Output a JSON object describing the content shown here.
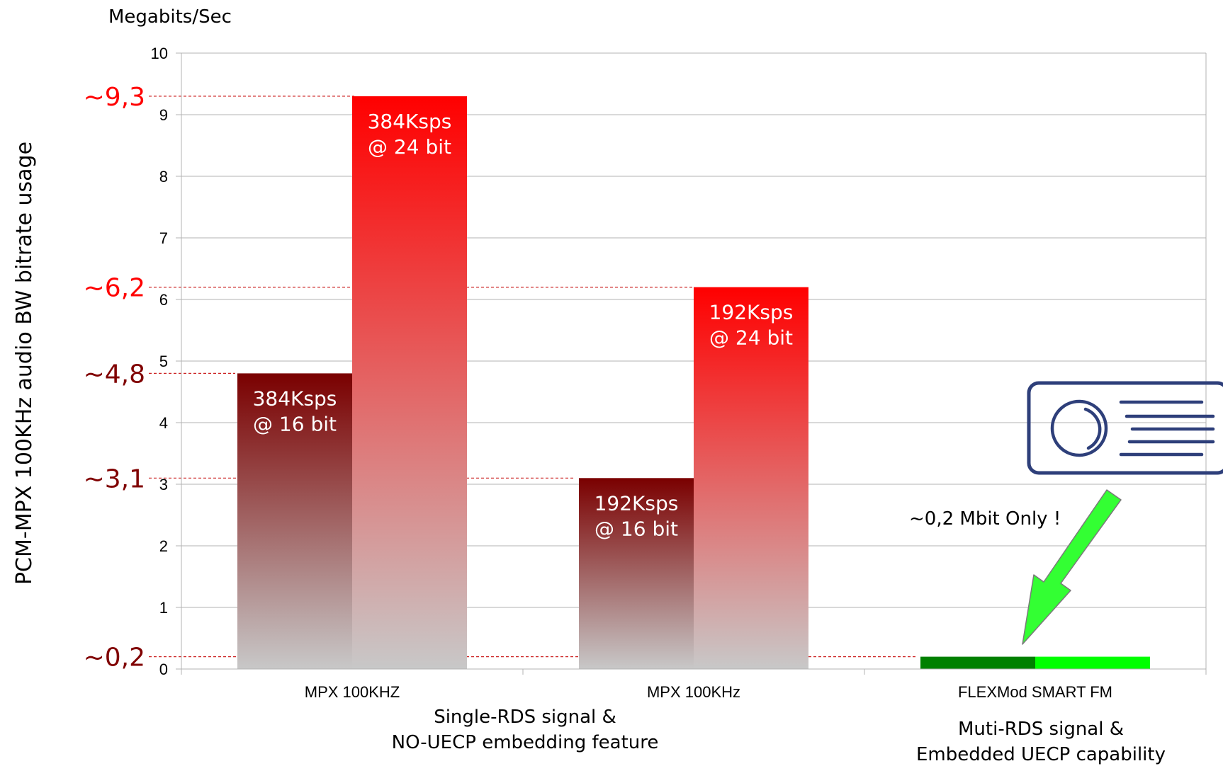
{
  "chart_data": {
    "type": "bar",
    "ylabel": "PCM-MPX 100KHz audio BW bitrate usage",
    "yunit": "Megabits/Sec",
    "ylim": [
      0,
      10
    ],
    "yticks": [
      "0",
      "1",
      "2",
      "3",
      "4",
      "5",
      "6",
      "7",
      "8",
      "9",
      "10"
    ],
    "grid": true,
    "categories": [
      "MPX 100KHZ",
      "MPX 100KHz",
      "FLEXMod SMART FM"
    ],
    "series": [
      {
        "values": [
          4.8,
          3.1,
          0.2
        ],
        "labels": [
          [
            "384Ksps",
            "@ 16 bit"
          ],
          [
            "192Ksps",
            "@ 16 bit"
          ],
          [
            "",
            ""
          ]
        ]
      },
      {
        "values": [
          9.3,
          6.2,
          0.2
        ],
        "labels": [
          [
            "384Ksps",
            "@ 24 bit"
          ],
          [
            "192Ksps",
            "@ 24 bit"
          ],
          [
            "",
            ""
          ]
        ]
      }
    ],
    "reference_lines": [
      {
        "value": 9.3,
        "label": "~9,3",
        "color": "#ff0000"
      },
      {
        "value": 6.2,
        "label": "~6,2",
        "color": "#ff0000"
      },
      {
        "value": 4.8,
        "label": "~4,8",
        "color": "#800000"
      },
      {
        "value": 3.1,
        "label": "~3,1",
        "color": "#800000"
      },
      {
        "value": 0.2,
        "label": "~0,2",
        "color": "#800000"
      }
    ],
    "group_captions": [
      [
        "Single-RDS signal &",
        "NO-UECP embedding feature"
      ],
      [
        "Muti-RDS signal &",
        "Embedded UECP capability"
      ]
    ],
    "annotation": "~0,2 Mbit Only !",
    "colors": {
      "series1_top": "#7a0000",
      "series1_bottom": "#c8c8c8",
      "series2_top": "#ff0000",
      "series2_bottom": "#c8c8c8",
      "highlight_series1": "#008000",
      "highlight_series2": "#00ff00",
      "arrow": "#33ff33",
      "device_icon": "#2e3f7a"
    },
    "icons": [
      "radio-device-icon",
      "green-arrow-icon"
    ]
  }
}
